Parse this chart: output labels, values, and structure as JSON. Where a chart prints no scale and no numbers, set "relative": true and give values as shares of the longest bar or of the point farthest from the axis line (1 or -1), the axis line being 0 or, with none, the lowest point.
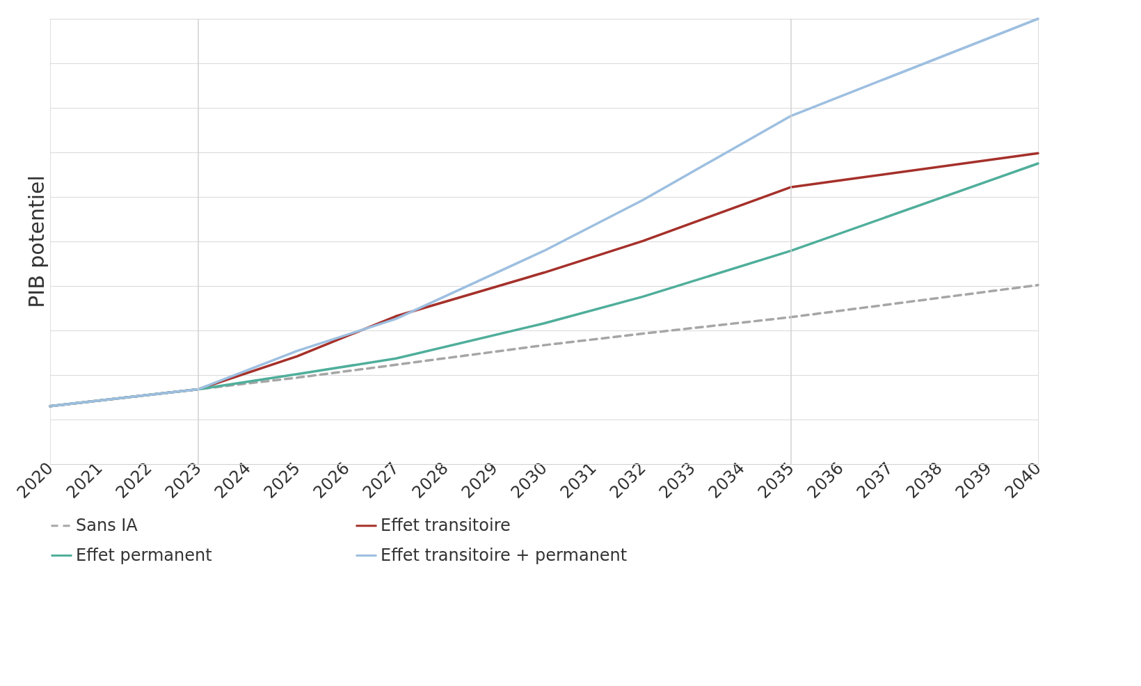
{
  "chart_data": {
    "type": "line",
    "ylabel": "PIB potentiel",
    "relative": true,
    "xlim": [
      2020,
      2040
    ],
    "xticks": [
      2020,
      2021,
      2022,
      2023,
      2024,
      2025,
      2026,
      2027,
      2028,
      2029,
      2030,
      2031,
      2032,
      2033,
      2034,
      2035,
      2036,
      2037,
      2038,
      2039,
      2040
    ],
    "grid": "y",
    "legend": "bottom",
    "ref_lines": [
      {
        "axis": "x",
        "value": 2023,
        "color": "#d0d0d0"
      },
      {
        "axis": "x",
        "value": 2035,
        "color": "#d0d0d0"
      }
    ],
    "series": [
      {
        "name": "Sans IA",
        "color": "#a6a6a6",
        "line_style": "dashed",
        "x": [
          2020,
          2023,
          2025,
          2027,
          2030,
          2032,
          2035,
          2040
        ],
        "values": [
          0.13,
          0.168,
          0.194,
          0.223,
          0.267,
          0.293,
          0.33,
          0.402
        ]
      },
      {
        "name": "Effet transitoire",
        "color": "#a5302a",
        "line_style": "solid",
        "x": [
          2020,
          2023,
          2025,
          2027,
          2030,
          2032,
          2035,
          2040
        ],
        "values": [
          0.13,
          0.168,
          0.242,
          0.332,
          0.43,
          0.501,
          0.622,
          0.698
        ]
      },
      {
        "name": "Effet permanent",
        "color": "#4fae9b",
        "line_style": "solid",
        "x": [
          2020,
          2023,
          2025,
          2027,
          2030,
          2032,
          2035,
          2040
        ],
        "values": [
          0.13,
          0.168,
          0.202,
          0.237,
          0.316,
          0.376,
          0.479,
          0.675
        ]
      },
      {
        "name": "Effet transitoire + permanent",
        "color": "#9dbfe0",
        "line_style": "solid",
        "x": [
          2020,
          2023,
          2025,
          2027,
          2030,
          2032,
          2035,
          2040
        ],
        "values": [
          0.13,
          0.168,
          0.254,
          0.326,
          0.479,
          0.593,
          0.782,
          1
        ]
      }
    ]
  }
}
